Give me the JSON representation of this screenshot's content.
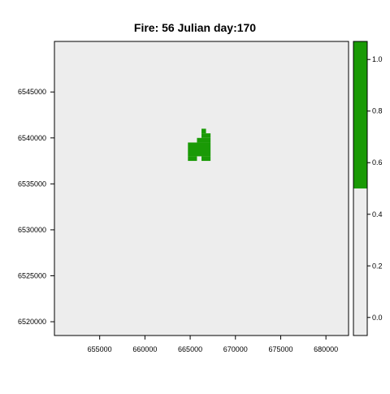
{
  "chart_data": [
    {
      "type": "heatmap",
      "title": "Fire: 56   Julian day:170",
      "xlabel": "",
      "ylabel": "",
      "xlim": [
        650000,
        682500
      ],
      "ylim": [
        6518500,
        6550500
      ],
      "xticks": [
        655000,
        660000,
        665000,
        670000,
        675000,
        680000
      ],
      "yticks": [
        6520000,
        6525000,
        6530000,
        6535000,
        6540000,
        6545000
      ],
      "background_value": 0,
      "burned_value": 1,
      "cell_size": 500,
      "burned_cells": [
        {
          "x0": 664750,
          "x1": 665750,
          "y0": 6537500,
          "y1": 6538000
        },
        {
          "x0": 666250,
          "x1": 667250,
          "y0": 6537500,
          "y1": 6538000
        },
        {
          "x0": 664750,
          "x1": 667250,
          "y0": 6538000,
          "y1": 6539500
        },
        {
          "x0": 665750,
          "x1": 667250,
          "y0": 6539500,
          "y1": 6540000
        },
        {
          "x0": 666250,
          "x1": 667250,
          "y0": 6540000,
          "y1": 6540500
        },
        {
          "x0": 666250,
          "x1": 666750,
          "y0": 6540500,
          "y1": 6541000
        }
      ],
      "colors": {
        "background": "#ededed",
        "burned": "#1a9a06",
        "frame": "#000000"
      }
    },
    {
      "type": "bar",
      "title": "",
      "role": "colorkey",
      "ylim": [
        -0.07,
        1.07
      ],
      "yticks": [
        0.0,
        0.2,
        0.4,
        0.6,
        0.8,
        1.0
      ],
      "ytick_labels": [
        "0.0",
        "0.2",
        "0.4",
        "0.6",
        "0.8",
        "1.0"
      ],
      "segments": [
        {
          "from": -0.07,
          "to": 0.5,
          "color": "#ededed"
        },
        {
          "from": 0.5,
          "to": 1.07,
          "color": "#1a9a06"
        }
      ]
    }
  ]
}
